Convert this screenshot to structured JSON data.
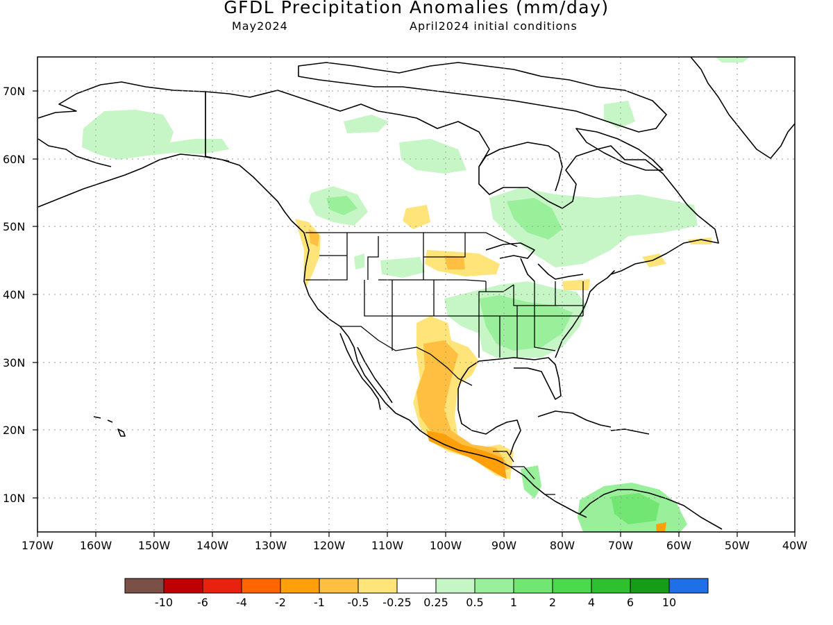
{
  "title": "GFDL Precipitation Anomalies (mm/day)",
  "subtitle_left": "May2024",
  "subtitle_right": "April2024 initial conditions",
  "lat_labels": [
    "70N",
    "60N",
    "50N",
    "40N",
    "30N",
    "20N",
    "10N"
  ],
  "lon_labels": [
    "170W",
    "160W",
    "150W",
    "140W",
    "130W",
    "120W",
    "110W",
    "100W",
    "90W",
    "80W",
    "70W",
    "60W",
    "50W",
    "40W"
  ],
  "colorbar": {
    "labels": [
      "-10",
      "-6",
      "-4",
      "-2",
      "-1",
      "-0.5",
      "-0.25",
      "0.25",
      "0.5",
      "1",
      "2",
      "4",
      "6",
      "10"
    ],
    "colors": [
      "#7b5046",
      "#c00000",
      "#e8220e",
      "#ff6600",
      "#ff9f0a",
      "#ffbf40",
      "#ffe47a",
      "#ffffff",
      "#c6f5c6",
      "#9af09a",
      "#72e672",
      "#4cd94c",
      "#2fc02f",
      "#169c16",
      "#1f6fe8"
    ]
  },
  "map": {
    "extent": {
      "lon": [
        -170,
        -40
      ],
      "lat": [
        5,
        75
      ]
    },
    "colors": {
      "land_outline": "#000000",
      "grid": "#9a9a9a",
      "wet_light": "#c6f5c6",
      "wet": "#9af09a",
      "dry_light": "#ffe47a",
      "dry": "#ffbf40",
      "dry_strong": "#ff9f0a"
    }
  }
}
